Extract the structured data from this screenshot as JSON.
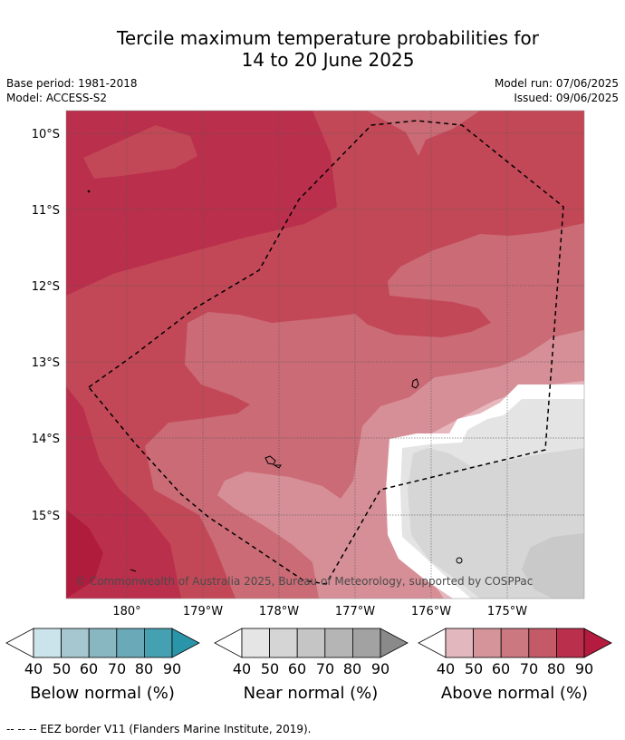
{
  "header": {
    "title_line1": "Tercile maximum temperature probabilities for",
    "title_line2": "14 to 20 June 2025",
    "base_period": "Base period: 1981-2018",
    "model": "Model: ACCESS-S2",
    "model_run": "Model run: 07/06/2025",
    "issued": "Issued: 09/06/2025"
  },
  "map": {
    "lat_labels": [
      "10°S",
      "11°S",
      "12°S",
      "13°S",
      "14°S",
      "15°S"
    ],
    "lon_labels": [
      "180°",
      "179°W",
      "178°W",
      "177°W",
      "176°W",
      "175°W"
    ],
    "copyright": "© Commonwealth of Australia 2025, Bureau of Meteorology, supported by COSPPac",
    "border_line": "EEZ border (dashed)",
    "colors": {
      "above_90": "#b01c3c",
      "above_80": "#ba2f4c",
      "above_70": "#c34857",
      "above_60": "#cb6b76",
      "above_50": "#d78f97",
      "above_40": "#e6b8be",
      "near_50": "#e4e4e4",
      "near_60": "#d6d6d6",
      "near_70": "#c9c9c9"
    }
  },
  "legends": [
    {
      "label": "Below normal (%)",
      "ticks": [
        "40",
        "50",
        "60",
        "70",
        "80",
        "90"
      ],
      "colors": [
        "#cbe3ea",
        "#a6c7cf",
        "#88b6c1",
        "#6aa9b7",
        "#45a0b1",
        "#2a95a8"
      ]
    },
    {
      "label": "Near normal (%)",
      "ticks": [
        "40",
        "50",
        "60",
        "70",
        "80",
        "90"
      ],
      "colors": [
        "#e5e5e5",
        "#d5d5d5",
        "#c5c5c5",
        "#b5b5b5",
        "#a2a2a2",
        "#8a8a8a"
      ]
    },
    {
      "label": "Above normal (%)",
      "ticks": [
        "40",
        "50",
        "60",
        "70",
        "80",
        "90"
      ],
      "colors": [
        "#e2b7bd",
        "#d5939a",
        "#cc7880",
        "#c45a67",
        "#ba2f4c",
        "#b51b3f"
      ]
    }
  ],
  "footnote": "--  --  -- EEZ border V11 (Flanders Marine Institute, 2019)."
}
